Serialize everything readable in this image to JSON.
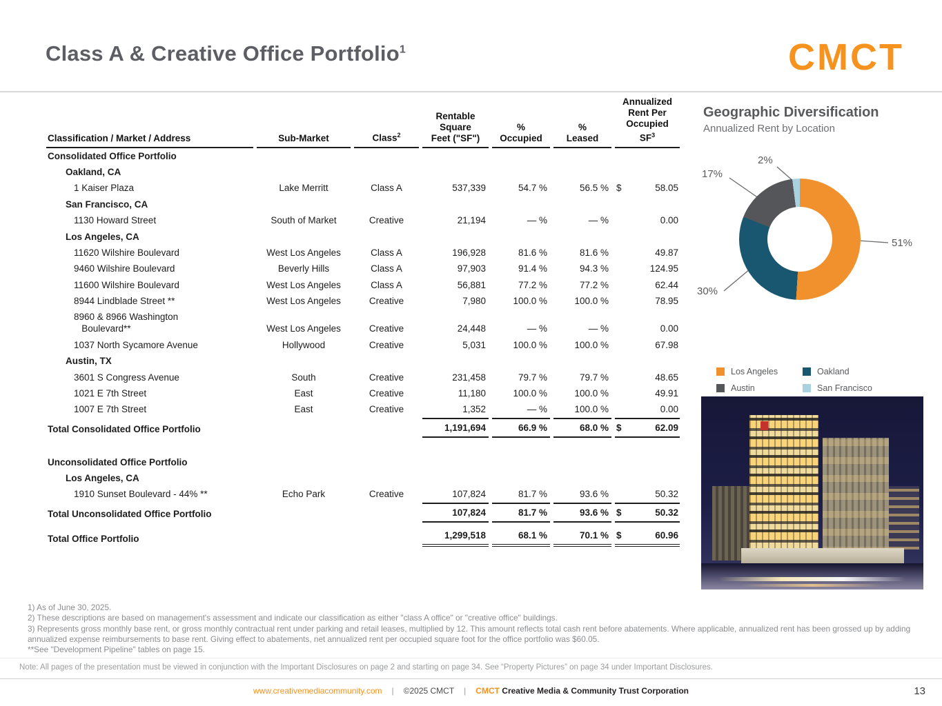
{
  "page": {
    "title": "Class A & Creative Office Portfolio",
    "title_sup": "1",
    "page_number": "13"
  },
  "logo": {
    "text": "CMCT"
  },
  "table": {
    "headers": [
      {
        "label": "Classification / Market / Address",
        "sup": ""
      },
      {
        "label": "Sub-Market",
        "sup": ""
      },
      {
        "label": "Class",
        "sup": "2"
      },
      {
        "label": "Rentable\nSquare\nFeet (\"SF\")",
        "sup": ""
      },
      {
        "label": "%\nOccupied",
        "sup": ""
      },
      {
        "label": "%\nLeased",
        "sup": ""
      },
      {
        "label": "Annualized\nRent Per\nOccupied\nSF",
        "sup": "3"
      }
    ],
    "rows": [
      {
        "type": "section",
        "label": "Consolidated Office Portfolio"
      },
      {
        "type": "market",
        "label": "Oakland, CA"
      },
      {
        "type": "property",
        "label": "1 Kaiser Plaza",
        "submarket": "Lake Merritt",
        "class": "Class A",
        "sf": "537,339",
        "occupied": "54.7 %",
        "leased": "56.5 %",
        "dollar": "$",
        "rent": "58.05"
      },
      {
        "type": "market",
        "label": "San Francisco, CA"
      },
      {
        "type": "property",
        "label": "1130 Howard Street",
        "submarket": "South of Market",
        "class": "Creative",
        "sf": "21,194",
        "occupied": "— %",
        "leased": "— %",
        "dollar": "",
        "rent": "0.00"
      },
      {
        "type": "market",
        "label": "Los Angeles, CA"
      },
      {
        "type": "property",
        "label": "11620 Wilshire Boulevard",
        "submarket": "West Los Angeles",
        "class": "Class A",
        "sf": "196,928",
        "occupied": "81.6 %",
        "leased": "81.6 %",
        "dollar": "",
        "rent": "49.87"
      },
      {
        "type": "property",
        "label": "9460 Wilshire Boulevard",
        "submarket": "Beverly Hills",
        "class": "Class A",
        "sf": "97,903",
        "occupied": "91.4 %",
        "leased": "94.3 %",
        "dollar": "",
        "rent": "124.95"
      },
      {
        "type": "property",
        "label": "11600 Wilshire Boulevard",
        "submarket": "West Los Angeles",
        "class": "Class A",
        "sf": "56,881",
        "occupied": "77.2 %",
        "leased": "77.2 %",
        "dollar": "",
        "rent": "62.44"
      },
      {
        "type": "property",
        "label": "8944 Lindblade Street **",
        "submarket": "West Los Angeles",
        "class": "Creative",
        "sf": "7,980",
        "occupied": "100.0 %",
        "leased": "100.0 %",
        "dollar": "",
        "rent": "78.95"
      },
      {
        "type": "property",
        "label": "8960 & 8966 Washington\n   Boulevard**",
        "submarket": "West Los Angeles",
        "class": "Creative",
        "sf": "24,448",
        "occupied": "— %",
        "leased": "— %",
        "dollar": "",
        "rent": "0.00"
      },
      {
        "type": "property",
        "label": "1037 North Sycamore Avenue",
        "submarket": "Hollywood",
        "class": "Creative",
        "sf": "5,031",
        "occupied": "100.0 %",
        "leased": "100.0 %",
        "dollar": "",
        "rent": "67.98"
      },
      {
        "type": "market",
        "label": "Austin, TX"
      },
      {
        "type": "property",
        "label": "3601 S Congress Avenue",
        "submarket": "South",
        "class": "Creative",
        "sf": "231,458",
        "occupied": "79.7 %",
        "leased": "79.7 %",
        "dollar": "",
        "rent": "48.65"
      },
      {
        "type": "property",
        "label": "1021 E 7th Street",
        "submarket": "East",
        "class": "Creative",
        "sf": "11,180",
        "occupied": "100.0 %",
        "leased": "100.0 %",
        "dollar": "",
        "rent": "49.91"
      },
      {
        "type": "property",
        "label": "1007 E 7th Street",
        "submarket": "East",
        "class": "Creative",
        "sf": "1,352",
        "occupied": "— %",
        "leased": "100.0 %",
        "dollar": "",
        "rent": "0.00"
      },
      {
        "type": "total",
        "label": "Total Consolidated Office Portfolio",
        "submarket": "",
        "class": "",
        "sf": "1,191,694",
        "occupied": "66.9 %",
        "leased": "68.0 %",
        "dollar": "$",
        "rent": "62.09"
      },
      {
        "type": "spacer",
        "h": 24
      },
      {
        "type": "section",
        "label": "Unconsolidated Office Portfolio"
      },
      {
        "type": "market",
        "label": "Los Angeles, CA"
      },
      {
        "type": "property",
        "label": "1910 Sunset Boulevard - 44%  **",
        "submarket": "Echo Park",
        "class": "Creative",
        "sf": "107,824",
        "occupied": "81.7 %",
        "leased": "93.6 %",
        "dollar": "",
        "rent": "50.32"
      },
      {
        "type": "total",
        "label": "Total Unconsolidated Office Portfolio",
        "submarket": "",
        "class": "",
        "sf": "107,824",
        "occupied": "81.7 %",
        "leased": "93.6 %",
        "dollar": "$",
        "rent": "50.32"
      },
      {
        "type": "spacer",
        "h": 7
      },
      {
        "type": "grand",
        "label": "Total Office Portfolio",
        "submarket": "",
        "class": "",
        "sf": "1,299,518",
        "occupied": "68.1 %",
        "leased": "70.1 %",
        "dollar": "$",
        "rent": "60.96"
      }
    ]
  },
  "chart_data": {
    "type": "pie",
    "donut": true,
    "title": "Geographic Diversification",
    "subtitle": "Annualized Rent by Location",
    "categories": [
      "Los Angeles",
      "Oakland",
      "Austin",
      "San Francisco"
    ],
    "values": [
      51,
      30,
      17,
      2
    ],
    "unit": "percent",
    "colors": [
      "#F0912D",
      "#19566F",
      "#55565A",
      "#A9D1DF"
    ],
    "slice_labels": {
      "la": "51%",
      "oak": "30%",
      "aus": "17%",
      "sf": "2%"
    },
    "legend_position": "bottom",
    "legend": [
      {
        "label": "Los Angeles",
        "color": "#F0912D"
      },
      {
        "label": "Oakland",
        "color": "#19566F"
      },
      {
        "label": "Austin",
        "color": "#55565A"
      },
      {
        "label": "San Francisco",
        "color": "#A9D1DF"
      }
    ]
  },
  "footnotes": {
    "line1": "1) As of June 30, 2025.",
    "line2": "2) These descriptions are based on management's assessment and indicate our classification as either \"class A office\" or \"creative office\" buildings.",
    "line3": "3) Represents gross monthly base rent, or gross monthly contractual rent under parking and retail leases, multiplied by 12. This amount reflects total cash rent before abatements. Where applicable, annualized rent has been grossed up by adding annualized expense reimbursements to base rent. Giving effect to abatements, net annualized rent per occupied square foot for the office portfolio was $60.05.",
    "line4": "**See \"Development Pipeline\" tables on page 15."
  },
  "note": "Note: All pages of the presentation must be viewed in conjunction with the Important Disclosures on page 2 and starting on page 34. See “Property Pictures” on page 34 under Important Disclosures.",
  "footer": {
    "url": "www.creativemediacommunity.com",
    "sep": "|",
    "copyright": "©2025 CMCT",
    "brand": "CMCT",
    "brand_rest": "Creative Media & Community Trust Corporation"
  }
}
